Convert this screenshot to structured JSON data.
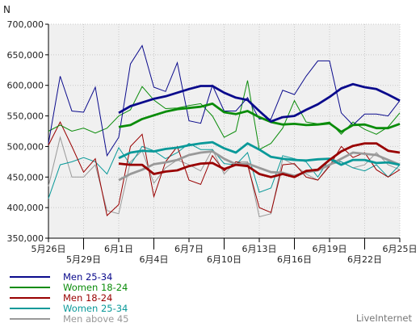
{
  "chart_data": {
    "type": "line",
    "ylabel": "N",
    "ylim": [
      350000,
      700000
    ],
    "y_ticks": [
      {
        "v": 350000,
        "label": "350,000"
      },
      {
        "v": 400000,
        "label": "400,000"
      },
      {
        "v": 450000,
        "label": "450,000"
      },
      {
        "v": 500000,
        "label": "500,000"
      },
      {
        "v": 550000,
        "label": "550,000"
      },
      {
        "v": 600000,
        "label": "600,000"
      },
      {
        "v": 650000,
        "label": "650,000"
      },
      {
        "v": 700000,
        "label": "700,000"
      }
    ],
    "x_ticks": [
      {
        "i": 0,
        "label": "5月26日",
        "row": 0
      },
      {
        "i": 3,
        "label": "5月29日",
        "row": 1
      },
      {
        "i": 6,
        "label": "6月1日",
        "row": 0
      },
      {
        "i": 9,
        "label": "6月4日",
        "row": 1
      },
      {
        "i": 12,
        "label": "6月7日",
        "row": 0
      },
      {
        "i": 15,
        "label": "6月10日",
        "row": 1
      },
      {
        "i": 18,
        "label": "6月13日",
        "row": 0
      },
      {
        "i": 21,
        "label": "6月16日",
        "row": 1
      },
      {
        "i": 24,
        "label": "6月19日",
        "row": 0
      },
      {
        "i": 27,
        "label": "6月22日",
        "row": 1
      },
      {
        "i": 30,
        "label": "6月25日",
        "row": 0
      }
    ],
    "grid": true,
    "legend_placement": "bottom-left",
    "series": [
      {
        "name": "Men 25-34",
        "color": "#0a0a8c",
        "daily": [
          505000,
          615000,
          558000,
          556000,
          597000,
          485000,
          515000,
          635000,
          665000,
          597000,
          590000,
          637000,
          542000,
          538000,
          600000,
          558000,
          558000,
          580000,
          545000,
          545000,
          592000,
          585000,
          615000,
          640000,
          640000,
          555000,
          535000,
          553000,
          553000,
          550000,
          575000
        ],
        "trend": [
          null,
          null,
          null,
          null,
          null,
          null,
          555000,
          566000,
          572000,
          578000,
          582000,
          588000,
          594000,
          599000,
          599000,
          588000,
          580000,
          576000,
          558000,
          541000,
          548000,
          550000,
          560000,
          569000,
          581000,
          595000,
          602000,
          597000,
          594000,
          585000,
          575000
        ]
      },
      {
        "name": "Women 18-24",
        "color": "#0a8c0a",
        "daily": [
          525000,
          535000,
          525000,
          530000,
          522000,
          530000,
          550000,
          560000,
          598000,
          576000,
          562000,
          563000,
          567000,
          570000,
          550000,
          515000,
          525000,
          608000,
          495000,
          505000,
          530000,
          575000,
          540000,
          537000,
          540000,
          520000,
          540000,
          528000,
          520000,
          532000,
          555000
        ],
        "trend": [
          null,
          null,
          null,
          null,
          null,
          null,
          532000,
          535000,
          545000,
          551000,
          557000,
          561000,
          563000,
          565000,
          570000,
          556000,
          553000,
          558000,
          548000,
          540000,
          536000,
          537000,
          535000,
          536000,
          538000,
          524000,
          535000,
          536000,
          530000,
          530000,
          537000
        ]
      },
      {
        "name": "Men 18-24",
        "color": "#990000",
        "daily": [
          502000,
          540000,
          500000,
          458000,
          480000,
          387000,
          405000,
          500000,
          520000,
          418000,
          475000,
          500000,
          445000,
          438000,
          485000,
          460000,
          475000,
          470000,
          400000,
          392000,
          470000,
          472000,
          450000,
          445000,
          468000,
          500000,
          482000,
          490000,
          462000,
          450000,
          462000
        ],
        "trend": [
          null,
          null,
          null,
          null,
          null,
          null,
          472000,
          470000,
          470000,
          455000,
          459000,
          461000,
          468000,
          472000,
          473000,
          463000,
          470000,
          468000,
          455000,
          450000,
          455000,
          450000,
          460000,
          462000,
          478000,
          492000,
          501000,
          505000,
          505000,
          493000,
          490000
        ]
      },
      {
        "name": "Women 25-34",
        "color": "#0a9999",
        "daily": [
          415000,
          470000,
          475000,
          482000,
          475000,
          455000,
          498000,
          470000,
          500000,
          493000,
          480000,
          490000,
          505000,
          495000,
          495000,
          472000,
          470000,
          490000,
          425000,
          432000,
          485000,
          480000,
          475000,
          450000,
          480000,
          475000,
          465000,
          460000,
          470000,
          450000,
          470000
        ],
        "trend": [
          null,
          null,
          null,
          null,
          null,
          null,
          481000,
          490000,
          493000,
          492000,
          496000,
          498000,
          502000,
          505000,
          507000,
          497000,
          490000,
          505000,
          495000,
          483000,
          480000,
          478000,
          477000,
          479000,
          480000,
          470000,
          478000,
          478000,
          473000,
          474000,
          470000
        ]
      },
      {
        "name": "Men above 45",
        "color": "#999999",
        "daily": [
          435000,
          515000,
          450000,
          450000,
          470000,
          395000,
          390000,
          475000,
          493000,
          440000,
          465000,
          478000,
          470000,
          460000,
          495000,
          455000,
          475000,
          475000,
          385000,
          390000,
          480000,
          470000,
          455000,
          445000,
          470000,
          475000,
          465000,
          470000,
          490000,
          470000,
          462000
        ],
        "trend": [
          null,
          null,
          null,
          null,
          null,
          null,
          445000,
          455000,
          462000,
          471000,
          474000,
          478000,
          486000,
          490000,
          492000,
          480000,
          471000,
          472000,
          465000,
          458000,
          457000,
          452000,
          458000,
          461000,
          470000,
          480000,
          490000,
          488000,
          486000,
          478000,
          470000
        ]
      }
    ]
  },
  "brand": "LiveInternet"
}
